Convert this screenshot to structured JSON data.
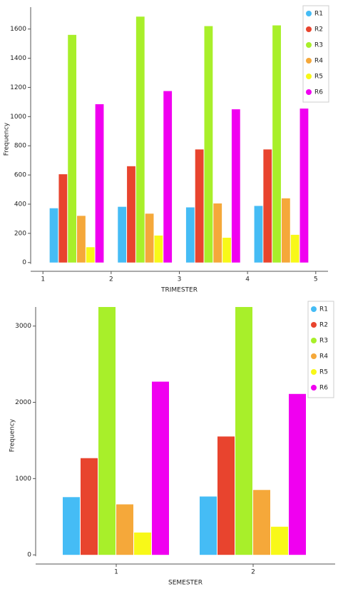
{
  "chart_data": [
    {
      "type": "bar",
      "x_label": "TRIMESTER",
      "y_label": "Frequency",
      "x": [
        1,
        2,
        3,
        4
      ],
      "xlim": [
        0.82,
        5.18
      ],
      "xticks": [
        1,
        2,
        3,
        4,
        5
      ],
      "ylim": [
        -60,
        1750
      ],
      "yticks": [
        0,
        200,
        400,
        600,
        800,
        1000,
        1200,
        1400,
        1600
      ],
      "series": [
        {
          "name": "R1",
          "color": "#45bcf5",
          "values": [
            372,
            382,
            378,
            388
          ]
        },
        {
          "name": "R2",
          "color": "#e8442e",
          "values": [
            605,
            660,
            775,
            775
          ]
        },
        {
          "name": "R3",
          "color": "#a8ef2a",
          "values": [
            1560,
            1685,
            1620,
            1625
          ]
        },
        {
          "name": "R4",
          "color": "#f5a83a",
          "values": [
            320,
            335,
            405,
            440
          ]
        },
        {
          "name": "R5",
          "color": "#f8f818",
          "values": [
            105,
            185,
            170,
            190
          ]
        },
        {
          "name": "R6",
          "color": "#f000f0",
          "values": [
            1085,
            1175,
            1050,
            1055
          ]
        }
      ]
    },
    {
      "type": "bar",
      "x_label": "SEMESTER",
      "y_label": "Frequency",
      "categories": [
        "1",
        "2"
      ],
      "ylim": [
        -120,
        3250
      ],
      "yticks": [
        0,
        1000,
        2000,
        3000
      ],
      "series": [
        {
          "name": "R1",
          "color": "#45bcf5",
          "values": [
            757,
            765
          ]
        },
        {
          "name": "R2",
          "color": "#e8442e",
          "values": [
            1268,
            1552
          ]
        },
        {
          "name": "R3",
          "color": "#a8ef2a",
          "values": [
            3250,
            3250
          ]
        },
        {
          "name": "R4",
          "color": "#f5a83a",
          "values": [
            662,
            851
          ]
        },
        {
          "name": "R5",
          "color": "#f8f818",
          "values": [
            293,
            369
          ]
        },
        {
          "name": "R6",
          "color": "#f000f0",
          "values": [
            2271,
            2110
          ]
        }
      ]
    }
  ]
}
